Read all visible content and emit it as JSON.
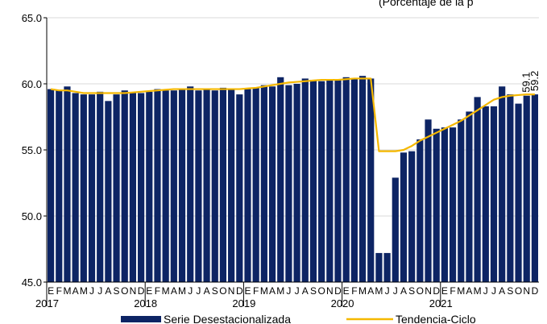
{
  "subtitle": "(Porcentaje de la p",
  "chart_data": {
    "type": "bar",
    "ylim": [
      45,
      65
    ],
    "yticks": [
      "45.0",
      "50.0",
      "55.0",
      "60.0",
      "65.0"
    ],
    "ytick_values": [
      45,
      50,
      55,
      60,
      65
    ],
    "month_letters": [
      "E",
      "F",
      "M",
      "A",
      "M",
      "J",
      "J",
      "A",
      "S",
      "O",
      "N",
      "D"
    ],
    "years": [
      {
        "label": "2017",
        "start_index": 0
      },
      {
        "label": "2018",
        "start_index": 12
      },
      {
        "label": "2019",
        "start_index": 24
      },
      {
        "label": "2020",
        "start_index": 36
      },
      {
        "label": "2021",
        "start_index": 48
      }
    ],
    "series": [
      {
        "name": "Serie Desestacionalizada",
        "kind": "bar",
        "color": "#0d2464",
        "values": [
          59.6,
          59.5,
          59.8,
          59.3,
          59.2,
          59.2,
          59.4,
          58.7,
          59.2,
          59.5,
          59.3,
          59.3,
          59.4,
          59.6,
          59.5,
          59.5,
          59.6,
          59.8,
          59.5,
          59.6,
          59.5,
          59.7,
          59.6,
          59.2,
          59.6,
          59.7,
          59.9,
          59.8,
          60.5,
          59.9,
          60.0,
          60.4,
          60.3,
          60.2,
          60.3,
          60.3,
          60.5,
          60.4,
          60.6,
          60.4,
          47.2,
          47.2,
          52.9,
          54.8,
          54.9,
          55.8,
          57.3,
          56.6,
          56.7,
          56.7,
          57.3,
          57.9,
          59.0,
          58.3,
          58.3,
          59.8,
          59.2,
          58.5,
          59.1,
          59.2
        ]
      },
      {
        "name": "Tendencia-Ciclo",
        "kind": "line",
        "color": "#f5b800",
        "values": [
          59.6,
          59.5,
          59.5,
          59.4,
          59.3,
          59.3,
          59.3,
          59.3,
          59.3,
          59.3,
          59.35,
          59.4,
          59.45,
          59.5,
          59.55,
          59.6,
          59.6,
          59.6,
          59.6,
          59.6,
          59.6,
          59.6,
          59.6,
          59.6,
          59.65,
          59.7,
          59.8,
          59.9,
          60.0,
          60.1,
          60.15,
          60.2,
          60.25,
          60.3,
          60.3,
          60.3,
          60.35,
          60.4,
          60.4,
          60.4,
          54.9,
          54.9,
          54.9,
          55.0,
          55.3,
          55.7,
          56.0,
          56.3,
          56.6,
          56.9,
          57.2,
          57.6,
          58.0,
          58.4,
          58.8,
          59.0,
          59.1,
          59.15,
          59.2,
          59.2
        ]
      }
    ],
    "data_labels": [
      {
        "index": 58,
        "text": "59.1"
      },
      {
        "index": 59,
        "text": "59.2"
      }
    ],
    "legend": {
      "placement": "bottom"
    }
  }
}
